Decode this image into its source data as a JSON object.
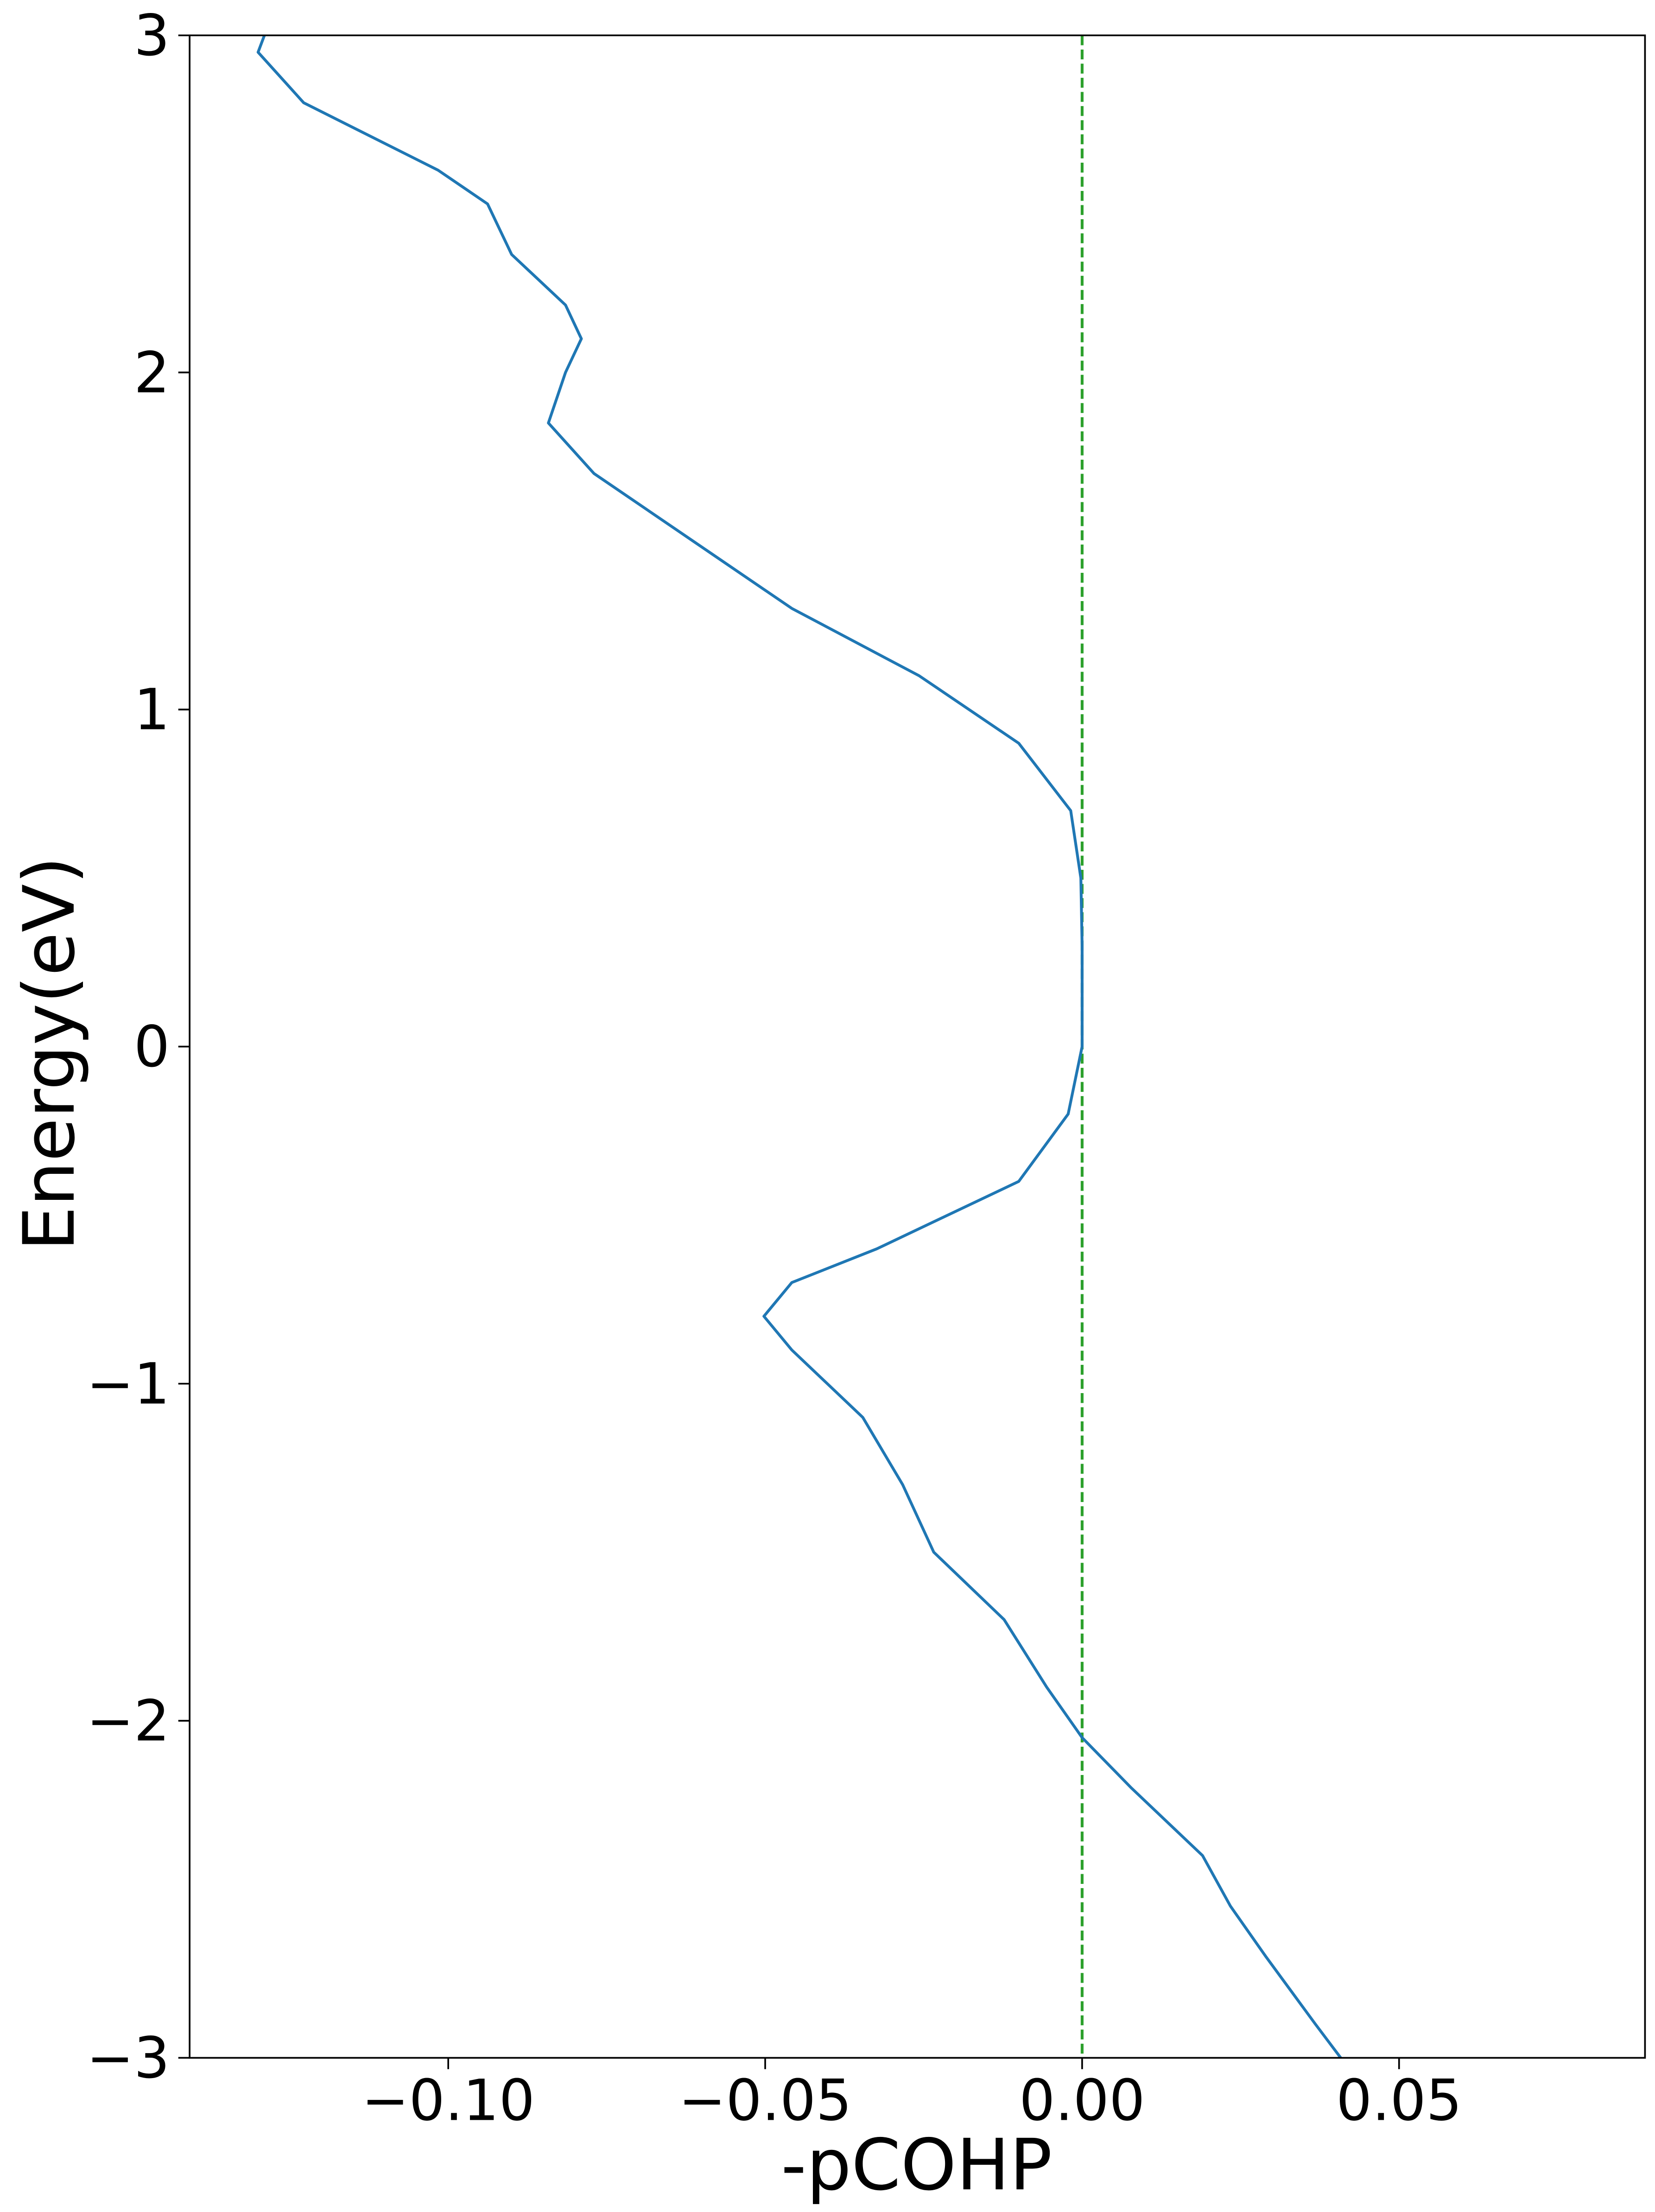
{
  "chart_data": {
    "type": "line",
    "xlabel": "-pCOHP",
    "ylabel": "Energy(eV)",
    "y": [
      3,
      2.95,
      2.8,
      2.6,
      2.5,
      2.35,
      2.2,
      2.1,
      2.0,
      1.85,
      1.7,
      1.5,
      1.3,
      1.1,
      0.9,
      0.7,
      0.5,
      0.3,
      0,
      -0.2,
      -0.4,
      -0.6,
      -0.7,
      -0.8,
      -0.9,
      -1.1,
      -1.3,
      -1.5,
      -1.7,
      -1.9,
      -2.05,
      -2.2,
      -2.4,
      -2.55,
      -2.7,
      -2.9,
      -3
    ],
    "series": [
      {
        "color": "#1f77b4",
        "values": [
          -0.129,
          -0.13,
          -0.1228,
          -0.1016,
          -0.0938,
          -0.09,
          -0.0815,
          -0.079,
          -0.0815,
          -0.0842,
          -0.077,
          -0.0614,
          -0.0458,
          -0.0257,
          -0.01,
          -0.0018,
          -0.0002,
          0,
          0,
          -0.0022,
          -0.01,
          -0.0324,
          -0.0458,
          -0.0502,
          -0.0458,
          -0.0346,
          -0.0283,
          -0.0234,
          -0.0123,
          -0.0056,
          0,
          0.0078,
          0.019,
          0.0234,
          0.029,
          0.0368,
          0.0408
        ]
      }
    ],
    "vline": {
      "x": 0,
      "color": "#2ca02c"
    },
    "xlim": [
      -0.1408,
      0.0888
    ],
    "xticks": [
      {
        "value": -0.1,
        "label": "−0.10"
      },
      {
        "value": -0.05,
        "label": "−0.05"
      },
      {
        "value": 0,
        "label": "0.00"
      },
      0.05
    ],
    "ylim": [
      -3,
      3
    ],
    "yticks": [
      {
        "value": -3,
        "label": "−3"
      },
      {
        "value": -2,
        "label": "−2"
      },
      {
        "value": -1,
        "label": "−1"
      },
      0,
      1,
      2,
      3
    ]
  }
}
